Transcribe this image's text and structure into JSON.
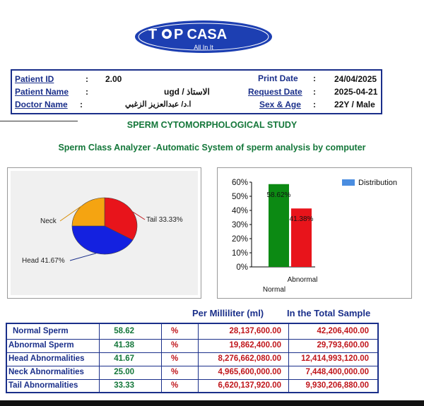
{
  "logo": {
    "brand_top": "T",
    "brand_rest": "P CASA",
    "tagline": "All In It"
  },
  "header": {
    "patient_id_label": "Patient ID",
    "patient_id": "2.00",
    "patient_name_label": "Patient Name",
    "patient_name": "ugd / الاستاذ",
    "doctor_name_label": "Doctor Name",
    "doctor_name": "ا.د/ عبدالعزيز الزغبي",
    "print_date_label": "Print Date",
    "print_date": "24/04/2025",
    "request_date_label": "Request Date",
    "request_date": "2025-04-21",
    "sex_age_label": "Sex & Age",
    "sex_age": "22Y / Male"
  },
  "study_title": "SPERM CYTOMORPHOLOGICAL STUDY",
  "subtitle": "Sperm Class Analyzer -Automatic System of sperm analysis by computer",
  "chart_data": [
    {
      "type": "pie",
      "labels": [
        "Tail",
        "Head",
        "Neck"
      ],
      "values": [
        33.33,
        41.67,
        25.0
      ],
      "display_labels": [
        "Tail 33.33%",
        "Head 41.67%",
        "Neck"
      ],
      "colors": [
        "#e8141b",
        "#1421e0",
        "#f5a411"
      ]
    },
    {
      "type": "bar",
      "categories": [
        "Normal",
        "Abnormal"
      ],
      "values": [
        58.62,
        41.38
      ],
      "data_labels": [
        "58.62%",
        "41.38%"
      ],
      "colors": [
        "#0c8a13",
        "#e8141b"
      ],
      "yticks": [
        "60%",
        "50%",
        "40%",
        "30%",
        "20%",
        "10%",
        "0%"
      ],
      "ylim": [
        0,
        60
      ],
      "legend": {
        "label": "Distribution",
        "color": "#4a8de0",
        "placement": "top-right"
      },
      "grid": false
    }
  ],
  "table": {
    "col_ml": "Per Milliliter (ml)",
    "col_total": "In the Total Sample",
    "unit": "%",
    "rows": [
      {
        "label": "Normal Sperm",
        "pct": "58.62",
        "ml": "28,137,600.00",
        "total": "42,206,400.00"
      },
      {
        "label": "Abnormal Sperm",
        "pct": "41.38",
        "ml": "19,862,400.00",
        "total": "29,793,600.00"
      },
      {
        "label": "Head Abnormalities",
        "pct": "41.67",
        "ml": "8,276,662,080.00",
        "total": "12,414,993,120.00"
      },
      {
        "label": "Neck Abnormalities",
        "pct": "25.00",
        "ml": "4,965,600,000.00",
        "total": "7,448,400,000.00"
      },
      {
        "label": "Tail Abnormalities",
        "pct": "33.33",
        "ml": "6,620,137,920.00",
        "total": "9,930,206,880.00"
      }
    ]
  }
}
